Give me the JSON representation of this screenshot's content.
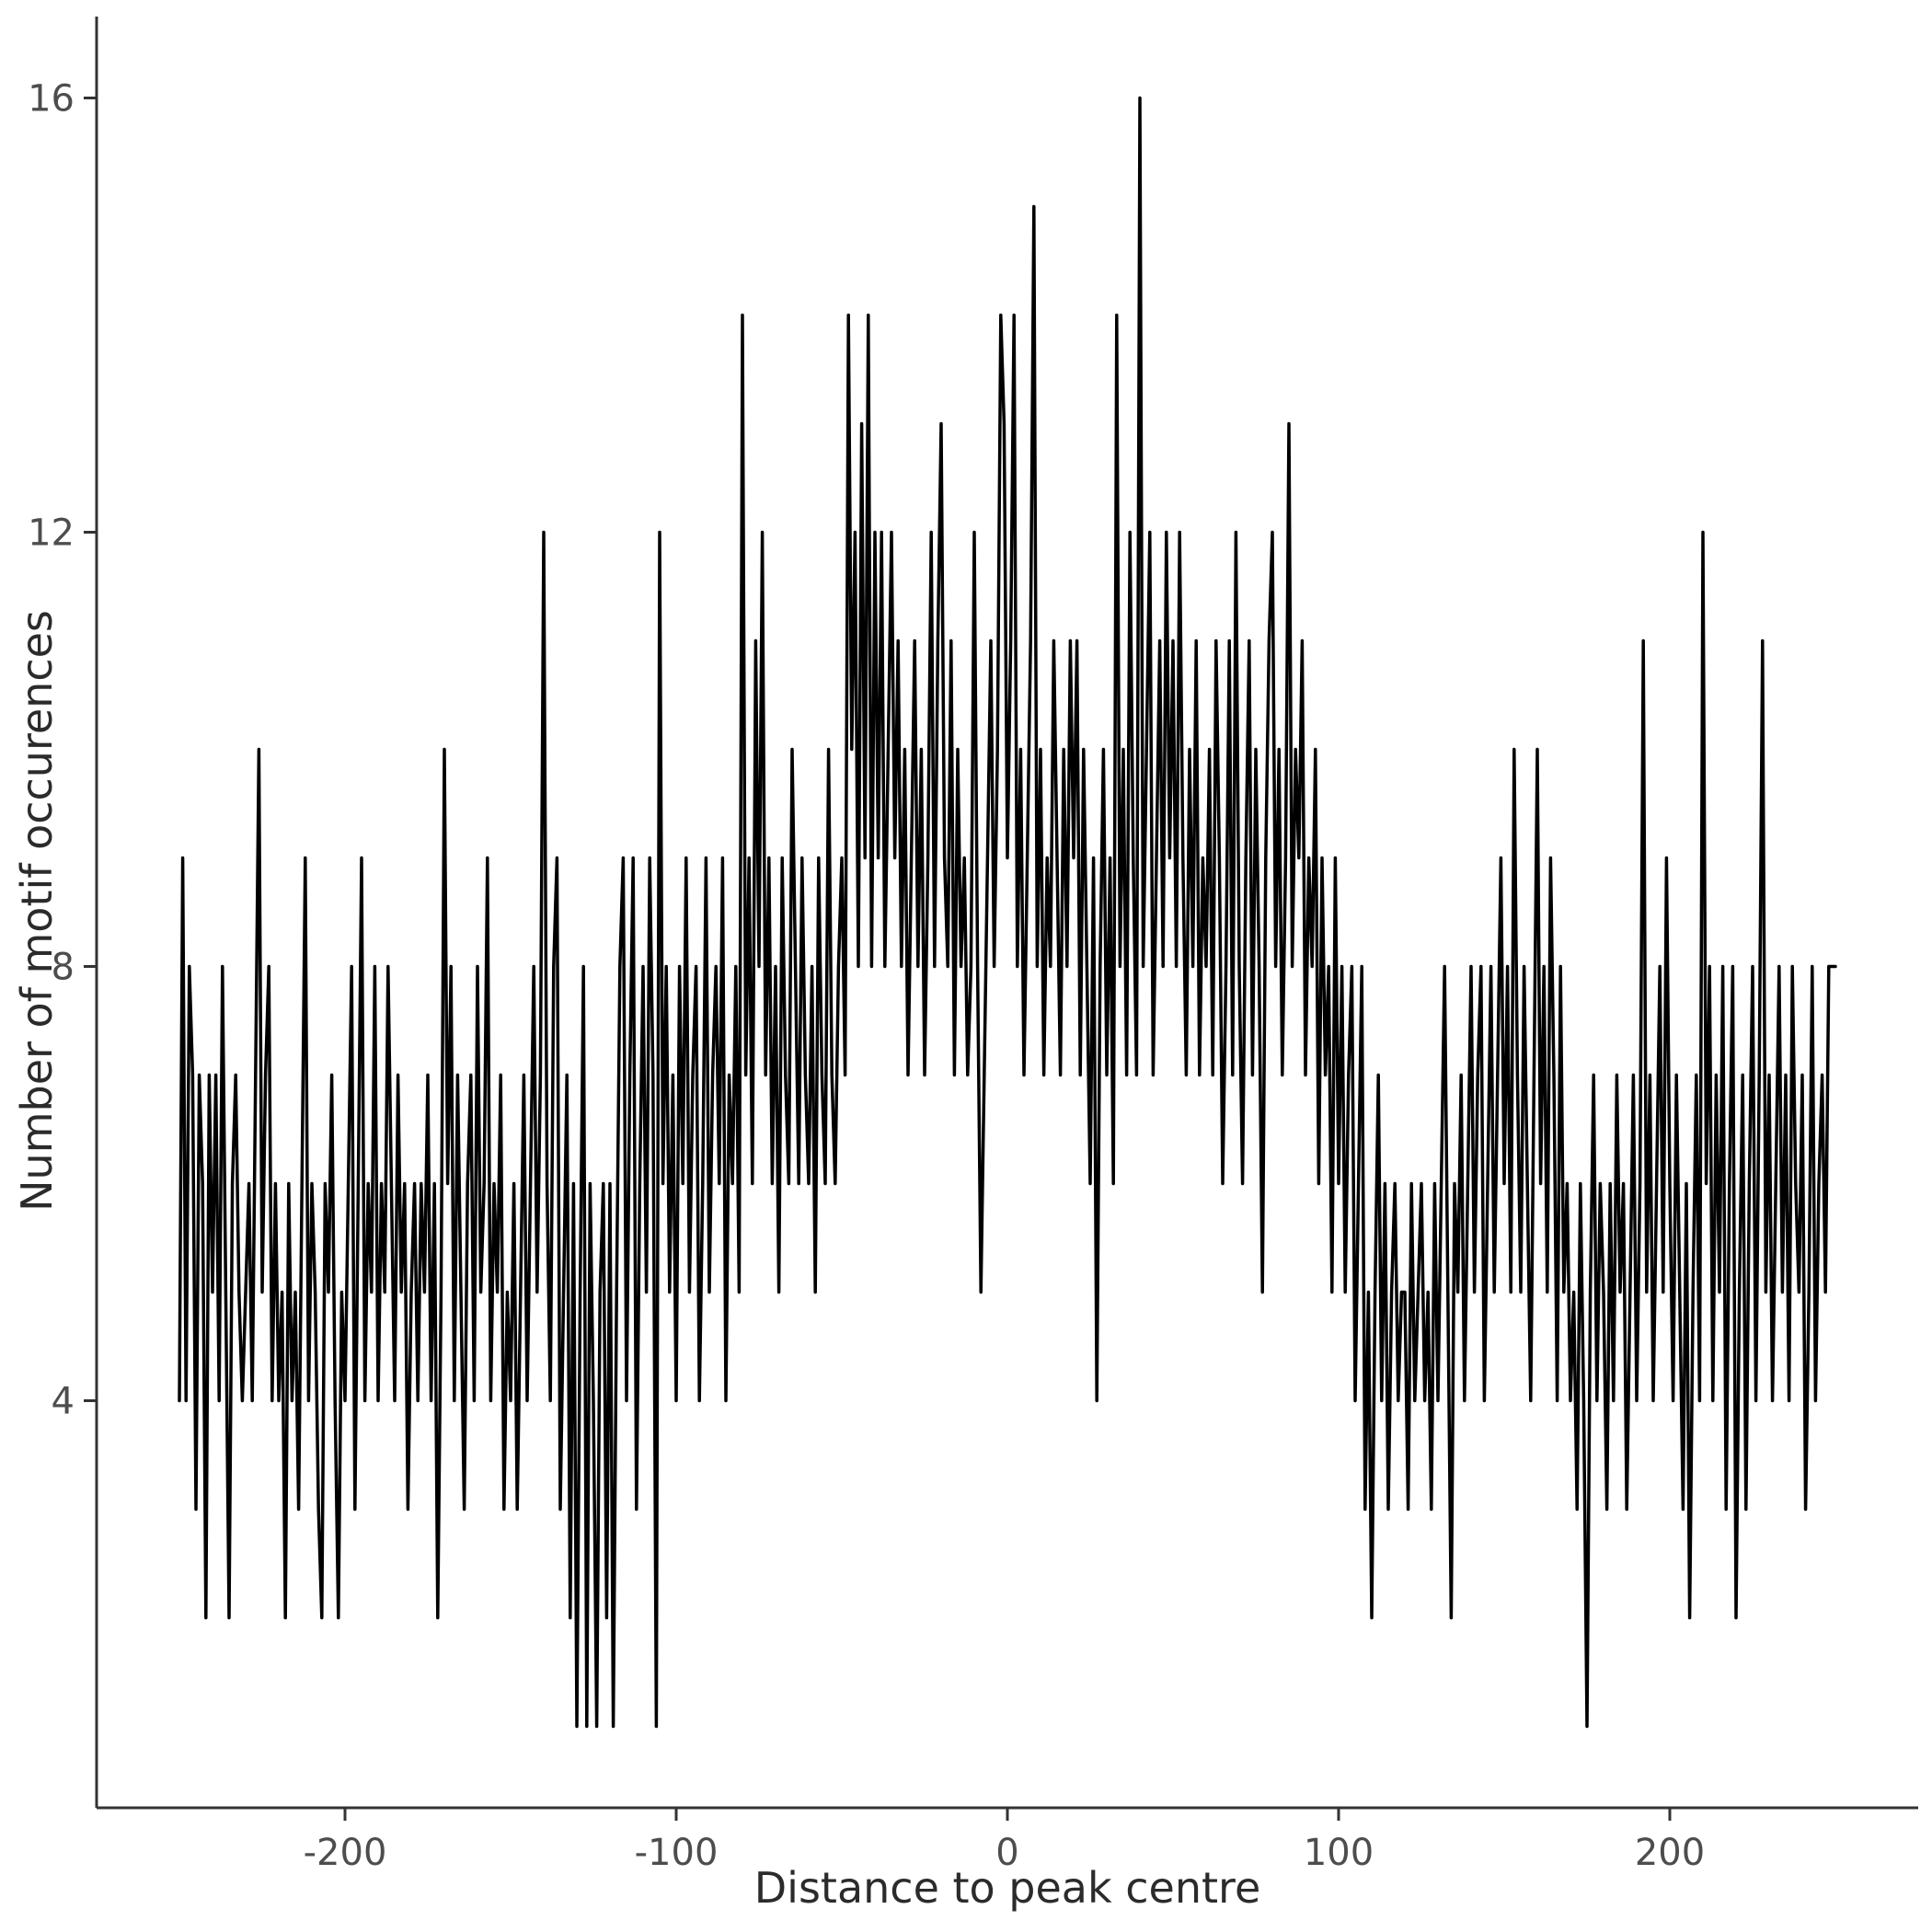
{
  "figure": {
    "xlabel": "Distance to peak centre",
    "ylabel": "Number of motif occurences"
  },
  "chart_data": {
    "type": "line",
    "title": "",
    "xlabel": "Distance to peak centre",
    "ylabel": "Number of motif occurences",
    "legend": "none",
    "grid": "off",
    "line_color": "#000000",
    "axis_color": "#333333",
    "tick_label_color": "#4d4d4d",
    "x_start": -250,
    "x_step": 1,
    "x_ticks": [
      -200,
      -100,
      0,
      100,
      200
    ],
    "y_ticks": [
      4,
      8,
      12,
      16
    ],
    "xlim": [
      -275,
      275
    ],
    "ylim": [
      0.25,
      16.75
    ],
    "values": [
      4,
      9,
      4,
      8,
      7,
      3,
      7,
      6,
      2,
      7,
      5,
      7,
      4,
      8,
      5,
      2,
      6,
      7,
      5,
      4,
      5,
      6,
      4,
      7,
      10,
      5,
      7,
      8,
      4,
      6,
      4,
      5,
      2,
      6,
      4,
      5,
      3,
      6,
      9,
      4,
      6,
      5,
      3,
      2,
      6,
      5,
      7,
      4,
      2,
      5,
      4,
      6,
      8,
      3,
      6,
      9,
      4,
      6,
      5,
      8,
      4,
      6,
      5,
      8,
      6,
      4,
      7,
      5,
      6,
      3,
      5,
      6,
      4,
      6,
      5,
      7,
      4,
      6,
      2,
      5,
      10,
      6,
      8,
      4,
      7,
      5,
      3,
      6,
      7,
      4,
      8,
      5,
      6,
      9,
      4,
      6,
      5,
      7,
      3,
      5,
      4,
      6,
      3,
      5,
      7,
      4,
      6,
      8,
      5,
      7,
      12,
      6,
      4,
      8,
      9,
      3,
      5,
      7,
      2,
      6,
      1,
      5,
      8,
      1,
      6,
      4,
      1,
      5,
      6,
      2,
      6,
      1,
      5,
      8,
      9,
      4,
      7,
      9,
      3,
      6,
      8,
      5,
      9,
      7,
      1,
      12,
      6,
      8,
      5,
      7,
      4,
      8,
      6,
      9,
      5,
      7,
      8,
      4,
      6,
      9,
      5,
      7,
      8,
      6,
      9,
      4,
      7,
      6,
      8,
      5,
      14,
      7,
      9,
      6,
      11,
      8,
      12,
      7,
      9,
      6,
      8,
      5,
      9,
      7,
      6,
      10,
      8,
      6,
      9,
      7,
      6,
      8,
      5,
      9,
      7,
      6,
      10,
      7,
      6,
      8,
      9,
      7,
      14,
      10,
      12,
      8,
      13,
      9,
      14,
      8,
      12,
      9,
      12,
      8,
      10,
      12,
      9,
      11,
      8,
      10,
      7,
      9,
      11,
      8,
      10,
      7,
      9,
      12,
      8,
      11,
      13,
      9,
      8,
      11,
      7,
      10,
      8,
      9,
      7,
      8,
      12,
      8,
      5,
      7,
      9,
      11,
      8,
      10,
      14,
      13,
      9,
      11,
      14,
      8,
      10,
      7,
      9,
      11,
      15,
      8,
      10,
      7,
      9,
      8,
      11,
      9,
      7,
      10,
      8,
      11,
      9,
      11,
      7,
      10,
      8,
      6,
      9,
      4,
      8,
      10,
      7,
      9,
      6,
      14,
      8,
      10,
      7,
      12,
      9,
      7,
      16,
      8,
      10,
      12,
      7,
      9,
      11,
      8,
      12,
      9,
      11,
      8,
      12,
      9,
      7,
      10,
      8,
      11,
      7,
      9,
      8,
      10,
      7,
      11,
      9,
      6,
      8,
      11,
      7,
      12,
      8,
      6,
      9,
      11,
      7,
      10,
      8,
      5,
      9,
      11,
      12,
      8,
      10,
      7,
      9,
      13,
      8,
      10,
      9,
      11,
      7,
      9,
      8,
      10,
      6,
      9,
      7,
      8,
      5,
      9,
      6,
      8,
      5,
      7,
      8,
      4,
      6,
      8,
      3,
      5,
      2,
      5,
      7,
      4,
      6,
      3,
      5,
      6,
      4,
      5,
      5,
      3,
      6,
      4,
      5,
      6,
      4,
      5,
      3,
      6,
      4,
      6,
      8,
      5,
      2,
      6,
      5,
      7,
      4,
      6,
      8,
      5,
      7,
      8,
      4,
      6,
      8,
      5,
      7,
      9,
      6,
      8,
      5,
      10,
      7,
      5,
      8,
      6,
      4,
      7,
      10,
      6,
      8,
      5,
      9,
      7,
      4,
      8,
      5,
      6,
      4,
      5,
      3,
      6,
      4,
      1,
      5,
      7,
      4,
      6,
      5,
      3,
      6,
      4,
      7,
      5,
      6,
      3,
      5,
      7,
      4,
      6,
      11,
      5,
      7,
      4,
      6,
      8,
      5,
      9,
      6,
      4,
      7,
      5,
      3,
      6,
      2,
      5,
      7,
      4,
      12,
      6,
      8,
      4,
      7,
      5,
      8,
      3,
      6,
      8,
      2,
      5,
      7,
      3,
      6,
      8,
      4,
      7,
      11,
      5,
      7,
      4,
      6,
      8,
      5,
      7,
      4,
      8,
      6,
      5,
      7,
      3,
      5,
      8,
      4,
      6,
      7,
      5,
      8,
      8,
      8
    ]
  }
}
